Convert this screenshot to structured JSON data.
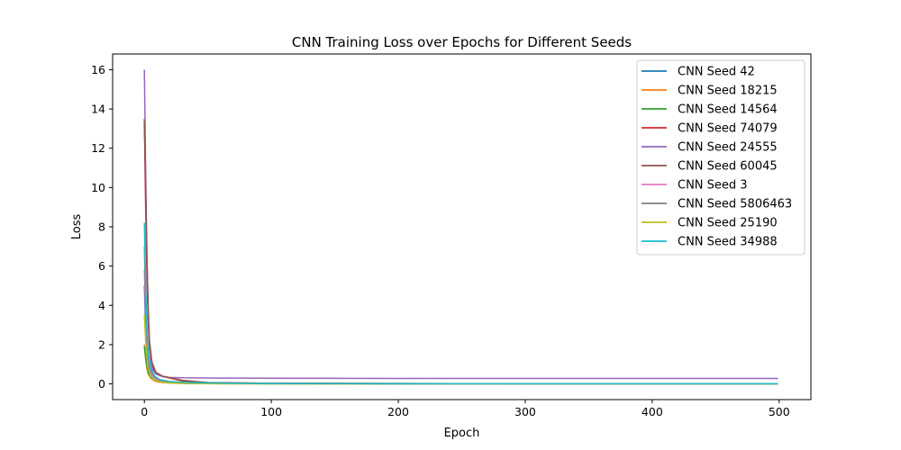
{
  "chart_data": {
    "type": "line",
    "title": "CNN Training Loss over Epochs for Different Seeds",
    "xlabel": "Epoch",
    "ylabel": "Loss",
    "xlim": [
      -25,
      525
    ],
    "ylim": [
      -0.8,
      16.8
    ],
    "xticks": [
      0,
      100,
      200,
      300,
      400,
      500
    ],
    "yticks": [
      0,
      2,
      4,
      6,
      8,
      10,
      12,
      14,
      16
    ],
    "grid": false,
    "legend_position": "top-right",
    "series": [
      {
        "name": "CNN Seed 42",
        "color": "#1f77b4",
        "x": [
          0,
          1,
          2,
          3,
          5,
          8,
          12,
          20,
          35,
          60,
          100,
          200,
          300,
          400,
          499
        ],
        "y": [
          5.0,
          2.8,
          1.6,
          1.0,
          0.55,
          0.3,
          0.18,
          0.1,
          0.06,
          0.03,
          0.02,
          0.01,
          0.01,
          0.01,
          0.01
        ]
      },
      {
        "name": "CNN Seed 18215",
        "color": "#ff7f0e",
        "x": [
          0,
          1,
          2,
          3,
          5,
          8,
          12,
          20,
          35,
          60,
          100,
          200,
          300,
          400,
          499
        ],
        "y": [
          2.0,
          1.3,
          0.8,
          0.5,
          0.3,
          0.15,
          0.08,
          0.04,
          0.02,
          0.01,
          0.01,
          0.0,
          0.0,
          0.0,
          0.0
        ]
      },
      {
        "name": "CNN Seed 14564",
        "color": "#2ca02c",
        "x": [
          0,
          1,
          2,
          3,
          5,
          8,
          12,
          20,
          35,
          60,
          100,
          200,
          300,
          400,
          499
        ],
        "y": [
          1.9,
          1.3,
          0.9,
          0.6,
          0.35,
          0.2,
          0.12,
          0.07,
          0.04,
          0.02,
          0.01,
          0.01,
          0.0,
          0.0,
          0.0
        ]
      },
      {
        "name": "CNN Seed 74079",
        "color": "#d62728",
        "x": [
          0,
          1,
          2,
          3,
          4,
          6,
          9,
          14,
          20,
          30,
          50,
          100,
          200,
          300,
          400,
          499
        ],
        "y": [
          13.5,
          9.0,
          5.5,
          3.2,
          1.8,
          0.9,
          0.55,
          0.38,
          0.3,
          0.15,
          0.06,
          0.03,
          0.02,
          0.01,
          0.01,
          0.01
        ]
      },
      {
        "name": "CNN Seed 24555",
        "color": "#9467bd",
        "x": [
          0,
          1,
          2,
          3,
          4,
          6,
          9,
          14,
          20,
          30,
          50,
          100,
          200,
          300,
          400,
          499
        ],
        "y": [
          16.0,
          11.0,
          6.5,
          3.5,
          1.8,
          0.8,
          0.5,
          0.38,
          0.33,
          0.31,
          0.3,
          0.29,
          0.28,
          0.28,
          0.28,
          0.28
        ]
      },
      {
        "name": "CNN Seed 60045",
        "color": "#8c564b",
        "x": [
          0,
          1,
          2,
          3,
          4,
          6,
          9,
          14,
          20,
          30,
          50,
          100,
          200,
          300,
          400,
          499
        ],
        "y": [
          13.4,
          10.0,
          6.5,
          4.0,
          2.2,
          1.1,
          0.6,
          0.4,
          0.32,
          0.18,
          0.07,
          0.03,
          0.02,
          0.01,
          0.01,
          0.01
        ]
      },
      {
        "name": "CNN Seed 3",
        "color": "#e377c2",
        "x": [
          0,
          1,
          2,
          3,
          5,
          8,
          12,
          20,
          35,
          60,
          100,
          200,
          300,
          400,
          499
        ],
        "y": [
          5.8,
          3.5,
          2.0,
          1.2,
          0.6,
          0.3,
          0.15,
          0.08,
          0.05,
          0.03,
          0.02,
          0.01,
          0.01,
          0.01,
          0.01
        ]
      },
      {
        "name": "CNN Seed 5806463",
        "color": "#7f7f7f",
        "x": [
          0,
          1,
          2,
          3,
          5,
          8,
          12,
          20,
          35,
          60,
          100,
          200,
          300,
          400,
          499
        ],
        "y": [
          7.0,
          4.2,
          2.4,
          1.4,
          0.7,
          0.35,
          0.2,
          0.1,
          0.06,
          0.03,
          0.02,
          0.01,
          0.01,
          0.01,
          0.01
        ]
      },
      {
        "name": "CNN Seed 25190",
        "color": "#bcbd22",
        "x": [
          0,
          1,
          2,
          3,
          5,
          8,
          12,
          20,
          35,
          60,
          100,
          200,
          300,
          400,
          499
        ],
        "y": [
          3.5,
          2.2,
          1.3,
          0.8,
          0.4,
          0.2,
          0.1,
          0.05,
          0.02,
          0.01,
          0.0,
          0.0,
          0.0,
          0.0,
          0.0
        ]
      },
      {
        "name": "CNN Seed 34988",
        "color": "#17becf",
        "x": [
          0,
          1,
          2,
          3,
          5,
          8,
          12,
          20,
          35,
          60,
          100,
          200,
          300,
          400,
          499
        ],
        "y": [
          8.2,
          5.0,
          2.8,
          1.6,
          0.8,
          0.4,
          0.22,
          0.12,
          0.07,
          0.04,
          0.02,
          0.01,
          0.01,
          0.01,
          0.01
        ]
      }
    ]
  }
}
